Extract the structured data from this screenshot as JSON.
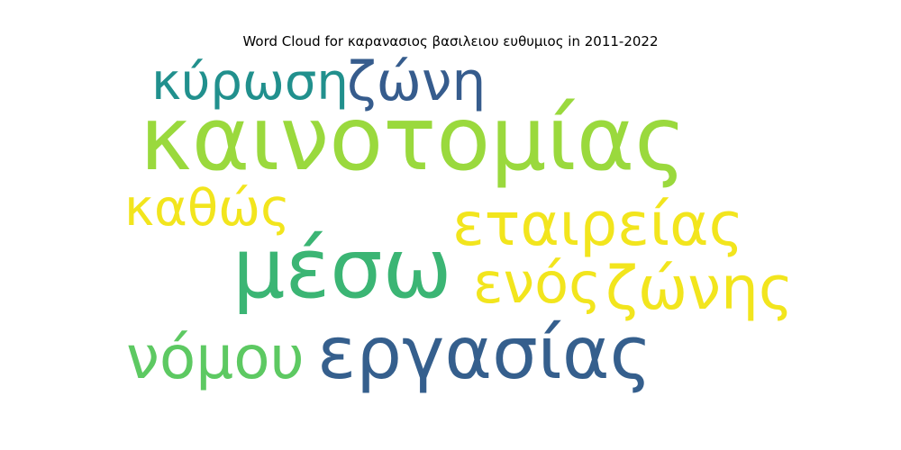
{
  "chart_data": {
    "type": "wordcloud",
    "title": "Word Cloud for καρανασιος βασιλειου ευθυμιος in 2011-2022",
    "words": [
      {
        "text": "καινοτομίας",
        "weight": 100,
        "color": "#9ad93d"
      },
      {
        "text": "μέσω",
        "weight": 88,
        "color": "#3bb574"
      },
      {
        "text": "εργασίας",
        "weight": 80,
        "color": "#355f8d"
      },
      {
        "text": "εταιρείας",
        "weight": 68,
        "color": "#f2e51d"
      },
      {
        "text": "ενός",
        "weight": 62,
        "color": "#f2e51d"
      },
      {
        "text": "ζώνης",
        "weight": 62,
        "color": "#f2e51d"
      },
      {
        "text": "νόμου",
        "weight": 62,
        "color": "#5dc962"
      },
      {
        "text": "καθώς",
        "weight": 58,
        "color": "#f2e51d"
      },
      {
        "text": "κύρωση",
        "weight": 55,
        "color": "#21908d"
      },
      {
        "text": "ζώνη",
        "weight": 55,
        "color": "#365c8d"
      }
    ]
  }
}
